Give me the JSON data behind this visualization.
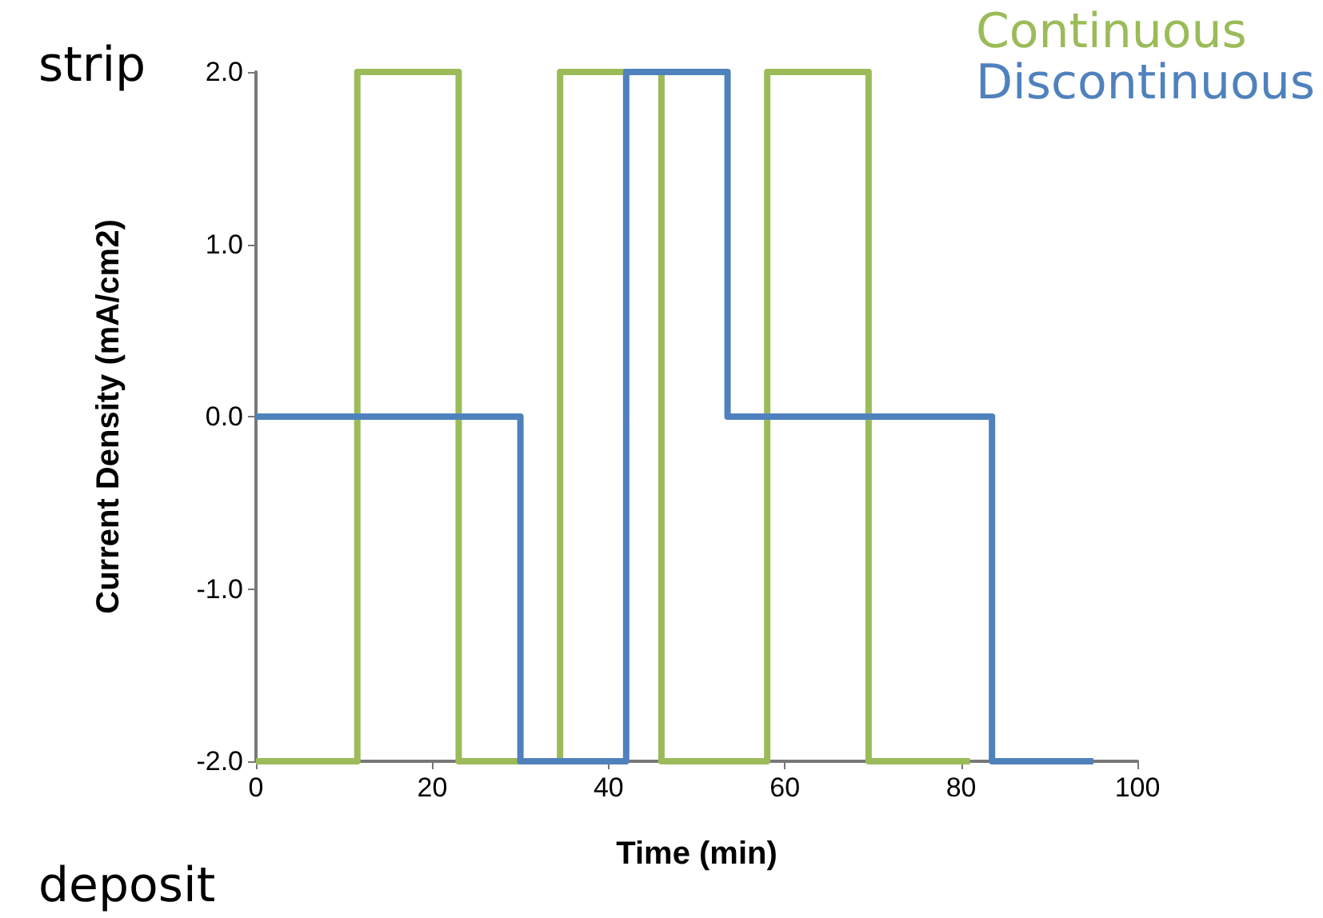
{
  "chart_data": {
    "type": "step",
    "xlabel": "Time (min)",
    "ylabel": "Current Density (mA/cm2)",
    "series": [
      {
        "name": "Continuous",
        "color": "#9bbb59",
        "x": [
          0,
          11.5,
          23,
          34.5,
          46,
          58,
          69.5,
          81
        ],
        "values": [
          -2,
          2,
          -2,
          2,
          -2,
          2,
          -2,
          -2
        ]
      },
      {
        "name": "Discontinuous",
        "color": "#4f81bd",
        "x": [
          0,
          30,
          42,
          53.5,
          83.5,
          95
        ],
        "values": [
          0,
          -2,
          2,
          0,
          -2,
          -2
        ]
      }
    ],
    "xlim": [
      0,
      100
    ],
    "xticks": [
      0,
      20,
      40,
      60,
      80,
      100
    ],
    "ylim": [
      -2,
      2
    ],
    "yticks": [
      {
        "value": -2,
        "label": "-2.0"
      },
      {
        "value": -1,
        "label": "-1.0"
      },
      {
        "value": 0,
        "label": "0.0"
      },
      {
        "value": 1,
        "label": "1.0"
      },
      {
        "value": 2,
        "label": "2.0"
      }
    ],
    "annotations": [
      "strip",
      "deposit"
    ],
    "legend": "top right",
    "grid": false,
    "marker": "none",
    "line_style": "solid"
  }
}
